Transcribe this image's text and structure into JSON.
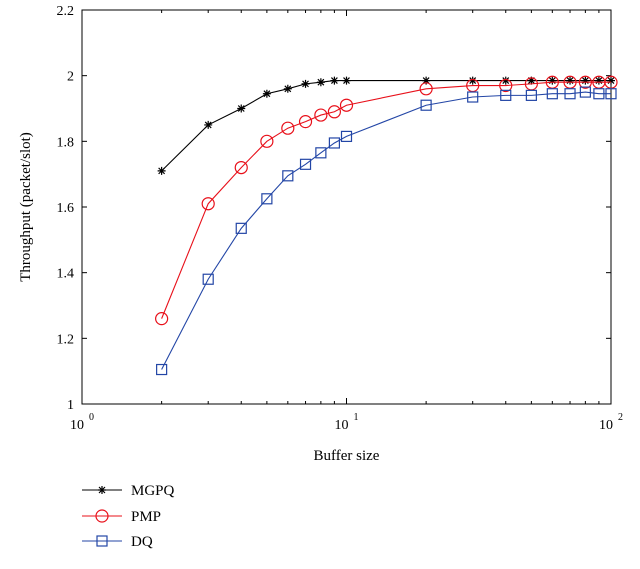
{
  "chart_data": {
    "type": "line",
    "xscale": "log",
    "xlim": [
      1,
      100
    ],
    "ylim": [
      1,
      2.2
    ],
    "xlabel": "Buffer size",
    "ylabel": "Throughput (packet/slot)",
    "x_ticks": [
      {
        "value": 1,
        "base": "10",
        "exp": "0"
      },
      {
        "value": 10,
        "base": "10",
        "exp": "1"
      },
      {
        "value": 100,
        "base": "10",
        "exp": "2"
      }
    ],
    "y_ticks": [
      "1",
      "1.2",
      "1.4",
      "1.6",
      "1.8",
      "2",
      "2.2"
    ],
    "grid": false,
    "legend_position": "bottom-left",
    "series": [
      {
        "name": "MGPQ",
        "color": "#000000",
        "marker": "star",
        "x": [
          2,
          3,
          4,
          5,
          6,
          7,
          8,
          9,
          10,
          20,
          30,
          40,
          50,
          60,
          70,
          80,
          90,
          100
        ],
        "y": [
          1.71,
          1.85,
          1.9,
          1.945,
          1.96,
          1.975,
          1.98,
          1.985,
          1.985,
          1.985,
          1.985,
          1.985,
          1.985,
          1.985,
          1.985,
          1.985,
          1.985,
          1.985
        ]
      },
      {
        "name": "PMP",
        "color": "#e8101a",
        "marker": "circle",
        "x": [
          2,
          3,
          4,
          5,
          6,
          7,
          8,
          9,
          10,
          20,
          30,
          40,
          50,
          60,
          70,
          80,
          90,
          100
        ],
        "y": [
          1.26,
          1.61,
          1.72,
          1.8,
          1.84,
          1.86,
          1.88,
          1.89,
          1.91,
          1.96,
          1.97,
          1.97,
          1.975,
          1.98,
          1.98,
          1.98,
          1.98,
          1.98
        ]
      },
      {
        "name": "DQ",
        "color": "#2346a6",
        "marker": "square",
        "x": [
          2,
          3,
          4,
          5,
          6,
          7,
          8,
          9,
          10,
          20,
          30,
          40,
          50,
          60,
          70,
          80,
          90,
          100
        ],
        "y": [
          1.105,
          1.38,
          1.535,
          1.625,
          1.695,
          1.73,
          1.765,
          1.795,
          1.815,
          1.91,
          1.935,
          1.94,
          1.94,
          1.945,
          1.945,
          1.95,
          1.945,
          1.945
        ]
      }
    ]
  }
}
